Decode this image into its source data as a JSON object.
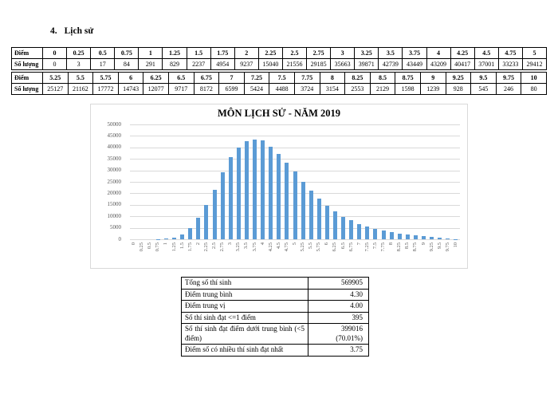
{
  "heading": {
    "number": "4.",
    "title": "Lịch sử"
  },
  "score_tables": [
    {
      "row_label_score": "Điểm",
      "row_label_count": "Số lượng",
      "scores": [
        "0",
        "0.25",
        "0.5",
        "0.75",
        "1",
        "1.25",
        "1.5",
        "1.75",
        "2",
        "2.25",
        "2.5",
        "2.75",
        "3",
        "3.25",
        "3.5",
        "3.75",
        "4",
        "4.25",
        "4.5",
        "4.75",
        "5"
      ],
      "counts": [
        "0",
        "3",
        "17",
        "84",
        "291",
        "829",
        "2237",
        "4954",
        "9237",
        "15040",
        "21556",
        "29185",
        "35663",
        "39871",
        "42739",
        "43449",
        "43209",
        "40417",
        "37001",
        "33233",
        "29412"
      ]
    },
    {
      "row_label_score": "Điểm",
      "row_label_count": "Số lượng",
      "scores": [
        "5.25",
        "5.5",
        "5.75",
        "6",
        "6.25",
        "6.5",
        "6.75",
        "7",
        "7.25",
        "7.5",
        "7.75",
        "8",
        "8.25",
        "8.5",
        "8.75",
        "9",
        "9.25",
        "9.5",
        "9.75",
        "10"
      ],
      "counts": [
        "25127",
        "21162",
        "17772",
        "14743",
        "12077",
        "9717",
        "8172",
        "6599",
        "5424",
        "4488",
        "3724",
        "3154",
        "2553",
        "2129",
        "1598",
        "1239",
        "928",
        "545",
        "246",
        "80"
      ]
    }
  ],
  "chart_data": {
    "type": "bar",
    "title": "MÔN LỊCH SỬ - NĂM 2019",
    "categories": [
      "0",
      "0.25",
      "0.5",
      "0.75",
      "1",
      "1.25",
      "1.5",
      "1.75",
      "2",
      "2.25",
      "2.5",
      "2.75",
      "3",
      "3.25",
      "3.5",
      "3.75",
      "4",
      "4.25",
      "4.5",
      "4.75",
      "5",
      "5.25",
      "5.5",
      "5.75",
      "6",
      "6.25",
      "6.5",
      "6.75",
      "7",
      "7.25",
      "7.5",
      "7.75",
      "8",
      "8.25",
      "8.5",
      "8.75",
      "9",
      "9.25",
      "9.5",
      "9.75",
      "10"
    ],
    "values": [
      0,
      3,
      17,
      84,
      291,
      829,
      2237,
      4954,
      9237,
      15040,
      21556,
      29185,
      35663,
      39871,
      42739,
      43449,
      43209,
      40417,
      37001,
      33233,
      29412,
      25127,
      21162,
      17772,
      14743,
      12077,
      9717,
      8172,
      6599,
      5424,
      4488,
      3724,
      3154,
      2553,
      2129,
      1598,
      1239,
      928,
      545,
      246,
      80
    ],
    "xlabel": "",
    "ylabel": "",
    "ylim": [
      0,
      50000
    ],
    "ytick_interval": 5000,
    "grid": "on",
    "legend": "none",
    "bar_color": "#5B9BD5",
    "gridline_color": "#D9D9D9"
  },
  "summary_table": {
    "rows": [
      {
        "label": "Tổng số thí sinh",
        "value": "569905"
      },
      {
        "label": "Điểm trung bình",
        "value": "4.30"
      },
      {
        "label": "Điểm trung vị",
        "value": "4.00"
      },
      {
        "label": "Số thí sinh đạt <=1 điểm",
        "value": "395"
      },
      {
        "label": "Số thí sinh đạt điểm dưới trung bình (<5 điểm)",
        "value": "399016\n(70.01%)"
      },
      {
        "label": "Điểm số có nhiều thí sinh đạt nhất",
        "value": "3.75"
      }
    ]
  }
}
